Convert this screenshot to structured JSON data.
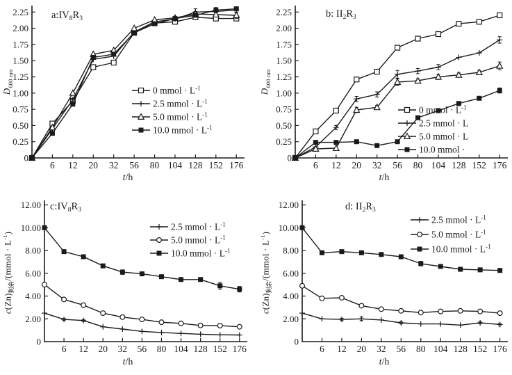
{
  "figure": {
    "background": "#ffffff",
    "ink_color": "#1a1a1a"
  },
  "chart_data": [
    {
      "id": "a",
      "type": "line",
      "title": "a:IV8R3",
      "title_parts": [
        {
          "t": "a:IV",
          "sub": false
        },
        {
          "t": "8",
          "sub": true
        },
        {
          "t": "R",
          "sub": false
        },
        {
          "t": "3",
          "sub": true
        }
      ],
      "ylabel": {
        "main": "D",
        "sub": "600 nm"
      },
      "xlabel": {
        "italic": "t",
        "rest": "/h"
      },
      "x_values": [
        0,
        6,
        12,
        20,
        32,
        56,
        80,
        104,
        128,
        152,
        176
      ],
      "x_tick_labels": [
        "6",
        "12",
        "20",
        "32",
        "56",
        "80",
        "104",
        "128",
        "152",
        "176"
      ],
      "y_ticks": {
        "values": [
          0,
          0.25,
          0.5,
          0.75,
          1.0,
          1.25,
          1.5,
          1.75,
          2.0,
          2.25
        ],
        "labels": [
          "0",
          "0.25",
          "0.50",
          "0.75",
          "1.00",
          "1.25",
          "1.50",
          "1.75",
          "2.00",
          "2.25"
        ]
      },
      "y_max": 2.35,
      "legend": [
        {
          "marker": "open-square",
          "text": "0 mmol · L",
          "sup": "-1"
        },
        {
          "marker": "plus",
          "text": "2.5 mmol · L",
          "sup": "-1"
        },
        {
          "marker": "open-triangle",
          "text": "5.0 mmol · L",
          "sup": "-1"
        },
        {
          "marker": "filled-square",
          "text": "10.0 mmol · L",
          "sup": "-1"
        }
      ],
      "series": [
        {
          "name": "0 mmol per L",
          "marker": "open-square",
          "values": [
            0,
            0.53,
            0.88,
            1.4,
            1.47,
            1.93,
            2.08,
            2.1,
            2.17,
            2.15,
            2.15
          ],
          "err": [
            0,
            0,
            0,
            0,
            0,
            0,
            0,
            0,
            0.04,
            0,
            0
          ]
        },
        {
          "name": "2.5 mmol per L",
          "marker": "plus",
          "values": [
            0,
            0.45,
            0.9,
            1.52,
            1.57,
            1.94,
            2.1,
            2.14,
            2.25,
            2.26,
            2.28
          ],
          "err": [
            0,
            0,
            0,
            0,
            0,
            0,
            0,
            0,
            0.05,
            0,
            0.04
          ]
        },
        {
          "name": "5.0 mmol per L",
          "marker": "open-triangle",
          "values": [
            0,
            0.47,
            1.0,
            1.6,
            1.66,
            2.0,
            2.13,
            2.16,
            2.22,
            2.21,
            2.2
          ],
          "err": [
            0,
            0,
            0,
            0,
            0,
            0,
            0,
            0,
            0.04,
            0,
            0.05
          ]
        },
        {
          "name": "10.0 mmol per L",
          "marker": "filled-square",
          "values": [
            0,
            0.38,
            0.83,
            1.55,
            1.6,
            1.93,
            2.07,
            2.15,
            2.2,
            2.28,
            2.3
          ],
          "err": [
            0,
            0,
            0,
            0,
            0,
            0,
            0,
            0.03,
            0,
            0.04,
            0
          ]
        }
      ]
    },
    {
      "id": "b",
      "type": "line",
      "title": "b: II2R3",
      "title_parts": [
        {
          "t": "b: II",
          "sub": false
        },
        {
          "t": "2",
          "sub": true
        },
        {
          "t": "R",
          "sub": false
        },
        {
          "t": "3",
          "sub": true
        }
      ],
      "ylabel": {
        "main": "D",
        "sub": "600 nm"
      },
      "xlabel": {
        "italic": "t",
        "rest": "/h"
      },
      "x_values": [
        0,
        6,
        12,
        20,
        32,
        56,
        80,
        104,
        128,
        152,
        176
      ],
      "x_tick_labels": [
        "6",
        "12",
        "20",
        "32",
        "56",
        "80",
        "104",
        "128",
        "152",
        "176"
      ],
      "y_ticks": {
        "values": [
          0,
          0.25,
          0.5,
          0.75,
          1.0,
          1.25,
          1.5,
          1.75,
          2.0,
          2.25
        ],
        "labels": [
          "0",
          "0.25",
          "0.50",
          "0.75",
          "1.00",
          "1.25",
          "1.50",
          "1.75",
          "2.00",
          "2.25"
        ]
      },
      "y_max": 2.35,
      "legend": [
        {
          "marker": "open-square",
          "text": "0 mmol · L",
          "sup": "-1"
        },
        {
          "marker": "plus",
          "text": "2.5 mmol · L",
          "sup": ""
        },
        {
          "marker": "open-triangle",
          "text": "5.0 mmol · L",
          "sup": ""
        },
        {
          "marker": "filled-square",
          "text": "10.0 mmol ·",
          "sup": ""
        }
      ],
      "series": [
        {
          "name": "0 mmol per L",
          "marker": "open-square",
          "values": [
            0,
            0.41,
            0.73,
            1.21,
            1.33,
            1.7,
            1.84,
            1.91,
            2.07,
            2.1,
            2.2
          ],
          "err": [
            0,
            0,
            0,
            0,
            0,
            0,
            0,
            0,
            0,
            0,
            0
          ]
        },
        {
          "name": "2.5 mmol per L",
          "marker": "plus",
          "values": [
            0,
            0.17,
            0.47,
            0.91,
            0.98,
            1.29,
            1.34,
            1.4,
            1.55,
            1.62,
            1.82
          ],
          "err": [
            0,
            0,
            0.03,
            0.04,
            0.04,
            0.06,
            0.04,
            0.04,
            0,
            0,
            0.05
          ]
        },
        {
          "name": "5.0 mmol per L",
          "marker": "open-triangle",
          "values": [
            0,
            0.14,
            0.15,
            0.74,
            0.78,
            1.17,
            1.19,
            1.25,
            1.28,
            1.32,
            1.42
          ],
          "err": [
            0,
            0,
            0,
            0.04,
            0.03,
            0.05,
            0.03,
            0.04,
            0.03,
            0.03,
            0.06
          ]
        },
        {
          "name": "10.0 mmol per L",
          "marker": "filled-square",
          "values": [
            0,
            0.24,
            0.24,
            0.25,
            0.19,
            0.25,
            0.62,
            0.73,
            0.84,
            0.92,
            1.04
          ],
          "err": [
            0,
            0,
            0,
            0,
            0,
            0,
            0,
            0,
            0,
            0,
            0.04
          ]
        }
      ]
    },
    {
      "id": "c",
      "type": "line",
      "title": "c:IV8R3",
      "title_parts": [
        {
          "t": "c:IV",
          "sub": false
        },
        {
          "t": "8",
          "sub": true
        },
        {
          "t": "R",
          "sub": false
        },
        {
          "t": "3",
          "sub": true
        }
      ],
      "ylabel": {
        "c_italic": "c",
        "formula": "(Zn)",
        "subscript": "剩余",
        "unit_pre": "/(mmol · L",
        "unit_sup": "-1",
        "unit_post": ")"
      },
      "xlabel": {
        "italic": "t",
        "rest": "/h"
      },
      "x_values": [
        0,
        6,
        12,
        20,
        32,
        56,
        80,
        104,
        128,
        152,
        176
      ],
      "x_tick_labels": [
        "6",
        "12",
        "20",
        "32",
        "56",
        "80",
        "104",
        "128",
        "152",
        "176"
      ],
      "y_ticks": {
        "values": [
          0,
          2,
          4,
          6,
          8,
          10,
          12
        ],
        "labels": [
          "0",
          "2.00",
          "4.00",
          "6.00",
          "8.00",
          "10.00",
          "12.00"
        ]
      },
      "y_max": 12.4,
      "legend": [
        {
          "marker": "plus",
          "text": "2.5 mmol · L",
          "sup": "-1"
        },
        {
          "marker": "open-circle",
          "text": "5.0 mmol · L",
          "sup": "-1"
        },
        {
          "marker": "filled-square",
          "text": "10.0 mmol · L",
          "sup": "-1"
        }
      ],
      "series": [
        {
          "name": "2.5 mmol per L",
          "marker": "plus",
          "values": [
            2.5,
            1.95,
            1.85,
            1.3,
            1.1,
            0.9,
            0.8,
            0.72,
            0.65,
            0.6,
            0.58
          ],
          "err": [
            0,
            0.08,
            0.08,
            0,
            0,
            0,
            0,
            0,
            0,
            0,
            0
          ]
        },
        {
          "name": "5.0 mmol per L",
          "marker": "open-circle",
          "values": [
            5.0,
            3.7,
            3.2,
            2.5,
            2.15,
            1.95,
            1.7,
            1.6,
            1.42,
            1.4,
            1.3
          ],
          "err": [
            0,
            0,
            0,
            0,
            0,
            0,
            0,
            0,
            0,
            0,
            0
          ]
        },
        {
          "name": "10.0 mmol per L",
          "marker": "filled-square",
          "values": [
            10.0,
            7.9,
            7.45,
            6.65,
            6.1,
            5.95,
            5.7,
            5.45,
            5.45,
            4.9,
            4.6
          ],
          "err": [
            0,
            0,
            0.15,
            0,
            0.2,
            0,
            0.15,
            0,
            0.15,
            0.3,
            0.25
          ]
        }
      ]
    },
    {
      "id": "d",
      "type": "line",
      "title": "d: II2R3",
      "title_parts": [
        {
          "t": "d: II",
          "sub": false
        },
        {
          "t": "2",
          "sub": true
        },
        {
          "t": "R",
          "sub": false
        },
        {
          "t": "3",
          "sub": true
        }
      ],
      "ylabel": {
        "c_italic": "c",
        "formula": "(Zn)",
        "subscript": "剩余",
        "unit_pre": "/(mmol · L",
        "unit_sup": "-1",
        "unit_post": ")"
      },
      "xlabel": {
        "italic": "t",
        "rest": "/h"
      },
      "x_values": [
        0,
        6,
        12,
        20,
        32,
        56,
        80,
        104,
        128,
        152,
        176
      ],
      "x_tick_labels": [
        "6",
        "12",
        "20",
        "32",
        "56",
        "80",
        "104",
        "128",
        "152",
        "176"
      ],
      "y_ticks": {
        "values": [
          0,
          2,
          4,
          6,
          8,
          10,
          12
        ],
        "labels": [
          "0",
          "2.00",
          "4.00",
          "6.00",
          "8.00",
          "10.00",
          "12.00"
        ]
      },
      "y_max": 12.4,
      "legend": [
        {
          "marker": "plus",
          "text": "2.5 mmol · L",
          "sup": "-1"
        },
        {
          "marker": "open-circle",
          "text": "5.0 mmol · L",
          "sup": "-1"
        },
        {
          "marker": "filled-square",
          "text": "10.0 mmol · L",
          "sup": "-1"
        }
      ],
      "series": [
        {
          "name": "2.5 mmol per L",
          "marker": "plus",
          "values": [
            2.5,
            2.0,
            1.95,
            2.0,
            1.9,
            1.65,
            1.55,
            1.55,
            1.45,
            1.65,
            1.5
          ],
          "err": [
            0,
            0,
            0.1,
            0.15,
            0,
            0.1,
            0,
            0,
            0,
            0.08,
            0.12
          ]
        },
        {
          "name": "5.0 mmol per L",
          "marker": "open-circle",
          "values": [
            4.9,
            3.8,
            3.85,
            3.15,
            2.85,
            2.7,
            2.55,
            2.65,
            2.7,
            2.65,
            2.5
          ],
          "err": [
            0,
            0,
            0,
            0,
            0,
            0,
            0,
            0,
            0,
            0.12,
            0.12
          ]
        },
        {
          "name": "10.0 mmol per L",
          "marker": "filled-square",
          "values": [
            10.0,
            7.8,
            7.9,
            7.8,
            7.65,
            7.45,
            6.85,
            6.6,
            6.35,
            6.3,
            6.25
          ],
          "err": [
            0,
            0,
            0,
            0,
            0,
            0.08,
            0.2,
            0,
            0,
            0,
            0.12
          ]
        }
      ]
    }
  ]
}
